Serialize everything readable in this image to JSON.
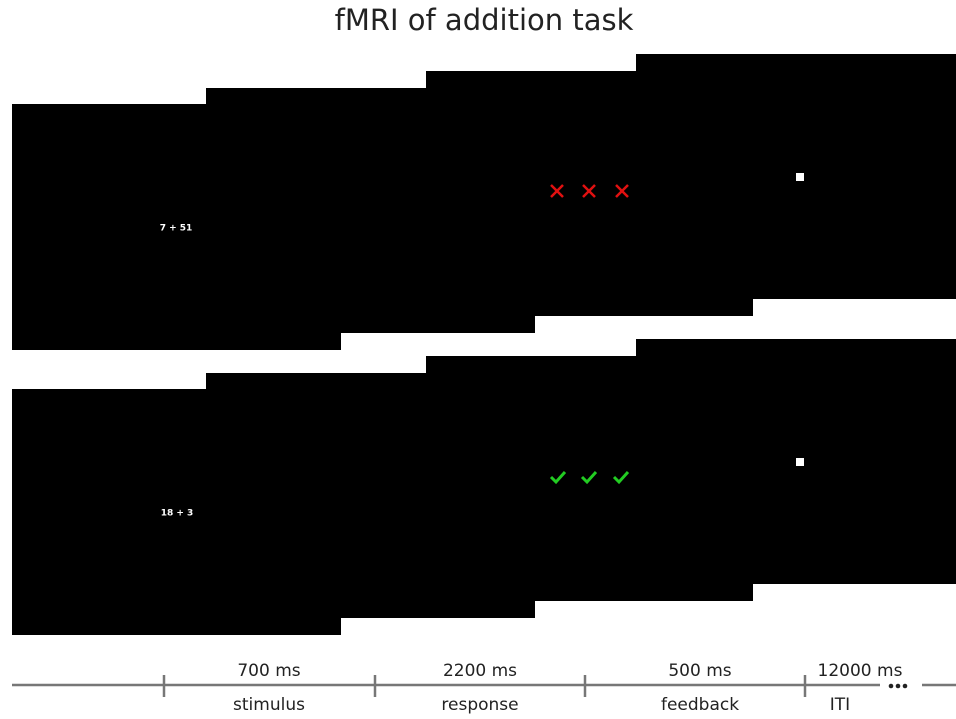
{
  "title": "fMRI of addition task",
  "trials": [
    {
      "stimulus": "7 + 51"
    },
    {
      "stimulus": "18 + 3"
    }
  ],
  "timeline": [
    {
      "duration": "700 ms",
      "phase": "stimulus"
    },
    {
      "duration": "2200 ms",
      "phase": "response"
    },
    {
      "duration": "500 ms",
      "phase": "feedback"
    },
    {
      "duration": "12000 ms",
      "phase": "ITI"
    }
  ]
}
